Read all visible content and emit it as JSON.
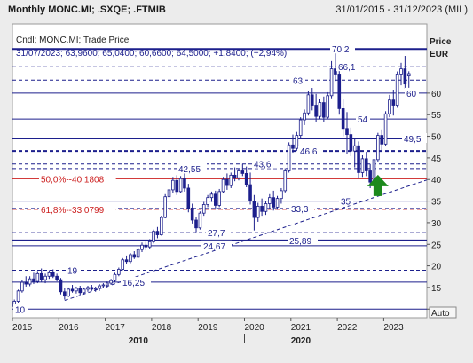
{
  "header": {
    "title": "Monthly MONC.MI; .SXQE; .FTMIB",
    "date_range": "31/01/2015 - 31/12/2023 (MIL)"
  },
  "legend": {
    "line1": "Cndl; MONC.MI; Trade Price",
    "line2": "31/07/2023; 63,9600; 65,0400; 60,6600; 64,5000; +1,8400; (+2,94%)"
  },
  "axis": {
    "price_label": "Price",
    "currency_label": "EUR",
    "auto_button": "Auto"
  },
  "colors": {
    "candle": "#1c1f8c",
    "resistance": "#1c1f8c",
    "fib": "#cc1e1e",
    "trend": "#1c1f8c",
    "arrow": "#1d8a1d"
  },
  "chart_data": {
    "type": "candlestick",
    "ylim": [
      8,
      76
    ],
    "y_ticks": [
      10,
      15,
      20,
      25,
      30,
      35,
      40,
      45,
      50,
      55,
      60
    ],
    "y_tick_labels": [
      "10",
      "15",
      "20",
      "25",
      "30",
      "35",
      "40",
      "45",
      "50",
      "55",
      "60"
    ],
    "x_year_labels": [
      "2015",
      "2016",
      "2017",
      "2018",
      "2019",
      "2020",
      "2021",
      "2022",
      "2023"
    ],
    "x_decade_labels": [
      "2010",
      "2020"
    ],
    "candles": [
      {
        "d": "2015-01",
        "o": 10.6,
        "h": 12.2,
        "l": 10.2,
        "c": 11.8
      },
      {
        "d": "2015-02",
        "o": 11.8,
        "h": 14.5,
        "l": 11.5,
        "c": 14.2
      },
      {
        "d": "2015-03",
        "o": 14.2,
        "h": 16.8,
        "l": 13.8,
        "c": 16.2
      },
      {
        "d": "2015-04",
        "o": 16.2,
        "h": 17.6,
        "l": 15.2,
        "c": 15.8
      },
      {
        "d": "2015-05",
        "o": 15.8,
        "h": 17.6,
        "l": 15.3,
        "c": 17.0
      },
      {
        "d": "2015-06",
        "o": 17.0,
        "h": 18.4,
        "l": 15.8,
        "c": 16.4
      },
      {
        "d": "2015-07",
        "o": 16.4,
        "h": 18.8,
        "l": 16.0,
        "c": 18.2
      },
      {
        "d": "2015-08",
        "o": 18.2,
        "h": 19.4,
        "l": 16.2,
        "c": 16.8
      },
      {
        "d": "2015-09",
        "o": 16.8,
        "h": 18.2,
        "l": 16.0,
        "c": 17.6
      },
      {
        "d": "2015-10",
        "o": 17.6,
        "h": 19.0,
        "l": 17.0,
        "c": 18.4
      },
      {
        "d": "2015-11",
        "o": 18.4,
        "h": 19.2,
        "l": 17.2,
        "c": 17.6
      },
      {
        "d": "2015-12",
        "o": 17.6,
        "h": 18.2,
        "l": 16.4,
        "c": 16.8
      },
      {
        "d": "2016-01",
        "o": 16.8,
        "h": 17.2,
        "l": 13.4,
        "c": 14.0
      },
      {
        "d": "2016-02",
        "o": 14.0,
        "h": 14.8,
        "l": 12.2,
        "c": 13.0
      },
      {
        "d": "2016-03",
        "o": 13.0,
        "h": 15.0,
        "l": 12.8,
        "c": 14.6
      },
      {
        "d": "2016-04",
        "o": 14.6,
        "h": 15.6,
        "l": 13.8,
        "c": 14.2
      },
      {
        "d": "2016-05",
        "o": 14.2,
        "h": 15.2,
        "l": 13.6,
        "c": 14.8
      },
      {
        "d": "2016-06",
        "o": 14.8,
        "h": 15.4,
        "l": 13.2,
        "c": 13.8
      },
      {
        "d": "2016-07",
        "o": 13.8,
        "h": 15.0,
        "l": 13.4,
        "c": 14.6
      },
      {
        "d": "2016-08",
        "o": 14.6,
        "h": 15.4,
        "l": 14.0,
        "c": 15.0
      },
      {
        "d": "2016-09",
        "o": 15.0,
        "h": 15.6,
        "l": 14.2,
        "c": 14.6
      },
      {
        "d": "2016-10",
        "o": 14.6,
        "h": 15.2,
        "l": 14.0,
        "c": 14.8
      },
      {
        "d": "2016-11",
        "o": 14.8,
        "h": 15.8,
        "l": 14.2,
        "c": 15.4
      },
      {
        "d": "2016-12",
        "o": 15.4,
        "h": 16.0,
        "l": 14.8,
        "c": 15.6
      },
      {
        "d": "2017-01",
        "o": 15.6,
        "h": 16.4,
        "l": 15.0,
        "c": 16.0
      },
      {
        "d": "2017-02",
        "o": 16.0,
        "h": 17.0,
        "l": 15.6,
        "c": 16.6
      },
      {
        "d": "2017-03",
        "o": 16.6,
        "h": 18.4,
        "l": 16.2,
        "c": 18.0
      },
      {
        "d": "2017-04",
        "o": 18.0,
        "h": 19.6,
        "l": 17.6,
        "c": 19.2
      },
      {
        "d": "2017-05",
        "o": 19.2,
        "h": 21.8,
        "l": 19.0,
        "c": 21.4
      },
      {
        "d": "2017-06",
        "o": 21.4,
        "h": 22.4,
        "l": 20.4,
        "c": 21.0
      },
      {
        "d": "2017-07",
        "o": 21.0,
        "h": 23.0,
        "l": 20.6,
        "c": 22.6
      },
      {
        "d": "2017-08",
        "o": 22.6,
        "h": 23.4,
        "l": 21.6,
        "c": 22.0
      },
      {
        "d": "2017-09",
        "o": 22.0,
        "h": 24.2,
        "l": 21.8,
        "c": 23.8
      },
      {
        "d": "2017-10",
        "o": 23.8,
        "h": 25.4,
        "l": 23.2,
        "c": 24.8
      },
      {
        "d": "2017-11",
        "o": 24.8,
        "h": 25.6,
        "l": 23.6,
        "c": 24.4
      },
      {
        "d": "2017-12",
        "o": 24.4,
        "h": 26.2,
        "l": 24.0,
        "c": 25.6
      },
      {
        "d": "2018-01",
        "o": 25.6,
        "h": 28.4,
        "l": 25.2,
        "c": 28.0
      },
      {
        "d": "2018-02",
        "o": 28.0,
        "h": 29.0,
        "l": 26.4,
        "c": 27.2
      },
      {
        "d": "2018-03",
        "o": 27.2,
        "h": 31.6,
        "l": 27.0,
        "c": 31.2
      },
      {
        "d": "2018-04",
        "o": 31.2,
        "h": 36.6,
        "l": 31.0,
        "c": 36.0
      },
      {
        "d": "2018-05",
        "o": 36.0,
        "h": 38.4,
        "l": 34.6,
        "c": 37.6
      },
      {
        "d": "2018-06",
        "o": 37.6,
        "h": 40.6,
        "l": 36.8,
        "c": 39.8
      },
      {
        "d": "2018-07",
        "o": 39.8,
        "h": 41.0,
        "l": 36.4,
        "c": 37.2
      },
      {
        "d": "2018-08",
        "o": 37.2,
        "h": 40.8,
        "l": 36.8,
        "c": 40.2
      },
      {
        "d": "2018-09",
        "o": 40.2,
        "h": 41.4,
        "l": 37.2,
        "c": 38.0
      },
      {
        "d": "2018-10",
        "o": 38.0,
        "h": 39.0,
        "l": 32.4,
        "c": 33.4
      },
      {
        "d": "2018-11",
        "o": 33.4,
        "h": 34.4,
        "l": 29.8,
        "c": 30.6
      },
      {
        "d": "2018-12",
        "o": 30.6,
        "h": 31.4,
        "l": 27.8,
        "c": 28.8
      },
      {
        "d": "2019-01",
        "o": 28.8,
        "h": 32.6,
        "l": 28.4,
        "c": 32.2
      },
      {
        "d": "2019-02",
        "o": 32.2,
        "h": 34.8,
        "l": 31.6,
        "c": 34.2
      },
      {
        "d": "2019-03",
        "o": 34.2,
        "h": 36.4,
        "l": 33.6,
        "c": 35.8
      },
      {
        "d": "2019-04",
        "o": 35.8,
        "h": 37.2,
        "l": 34.8,
        "c": 36.6
      },
      {
        "d": "2019-05",
        "o": 36.6,
        "h": 37.4,
        "l": 33.2,
        "c": 34.0
      },
      {
        "d": "2019-06",
        "o": 34.0,
        "h": 37.8,
        "l": 33.6,
        "c": 37.2
      },
      {
        "d": "2019-07",
        "o": 37.2,
        "h": 40.6,
        "l": 36.8,
        "c": 40.0
      },
      {
        "d": "2019-08",
        "o": 40.0,
        "h": 41.4,
        "l": 37.6,
        "c": 38.6
      },
      {
        "d": "2019-09",
        "o": 38.6,
        "h": 41.6,
        "l": 38.0,
        "c": 41.0
      },
      {
        "d": "2019-10",
        "o": 41.0,
        "h": 42.8,
        "l": 39.6,
        "c": 40.4
      },
      {
        "d": "2019-11",
        "o": 40.4,
        "h": 42.6,
        "l": 39.8,
        "c": 42.0
      },
      {
        "d": "2019-12",
        "o": 42.0,
        "h": 43.6,
        "l": 40.8,
        "c": 41.4
      },
      {
        "d": "2020-01",
        "o": 41.4,
        "h": 43.0,
        "l": 38.2,
        "c": 38.8
      },
      {
        "d": "2020-02",
        "o": 38.8,
        "h": 41.6,
        "l": 34.2,
        "c": 35.0
      },
      {
        "d": "2020-03",
        "o": 35.0,
        "h": 36.4,
        "l": 28.2,
        "c": 31.2
      },
      {
        "d": "2020-04",
        "o": 31.2,
        "h": 34.6,
        "l": 30.2,
        "c": 33.8
      },
      {
        "d": "2020-05",
        "o": 33.8,
        "h": 35.6,
        "l": 31.6,
        "c": 32.6
      },
      {
        "d": "2020-06",
        "o": 32.6,
        "h": 35.0,
        "l": 31.8,
        "c": 34.4
      },
      {
        "d": "2020-07",
        "o": 34.4,
        "h": 36.6,
        "l": 33.2,
        "c": 35.8
      },
      {
        "d": "2020-08",
        "o": 35.8,
        "h": 37.4,
        "l": 32.8,
        "c": 33.6
      },
      {
        "d": "2020-09",
        "o": 33.6,
        "h": 36.2,
        "l": 33.0,
        "c": 35.6
      },
      {
        "d": "2020-10",
        "o": 35.6,
        "h": 38.0,
        "l": 34.4,
        "c": 37.4
      },
      {
        "d": "2020-11",
        "o": 37.4,
        "h": 42.6,
        "l": 37.0,
        "c": 42.0
      },
      {
        "d": "2020-12",
        "o": 42.0,
        "h": 48.6,
        "l": 41.6,
        "c": 48.0
      },
      {
        "d": "2021-01",
        "o": 48.0,
        "h": 50.4,
        "l": 46.2,
        "c": 47.2
      },
      {
        "d": "2021-02",
        "o": 47.2,
        "h": 51.0,
        "l": 46.6,
        "c": 50.2
      },
      {
        "d": "2021-03",
        "o": 50.2,
        "h": 54.4,
        "l": 49.4,
        "c": 53.8
      },
      {
        "d": "2021-04",
        "o": 53.8,
        "h": 56.2,
        "l": 52.6,
        "c": 55.4
      },
      {
        "d": "2021-05",
        "o": 55.4,
        "h": 60.4,
        "l": 54.8,
        "c": 59.6
      },
      {
        "d": "2021-06",
        "o": 59.6,
        "h": 61.2,
        "l": 56.0,
        "c": 57.2
      },
      {
        "d": "2021-07",
        "o": 57.2,
        "h": 59.8,
        "l": 53.4,
        "c": 54.6
      },
      {
        "d": "2021-08",
        "o": 54.6,
        "h": 58.6,
        "l": 54.0,
        "c": 57.8
      },
      {
        "d": "2021-09",
        "o": 57.8,
        "h": 59.2,
        "l": 53.2,
        "c": 54.4
      },
      {
        "d": "2021-10",
        "o": 54.4,
        "h": 60.2,
        "l": 54.0,
        "c": 59.4
      },
      {
        "d": "2021-11",
        "o": 59.4,
        "h": 67.4,
        "l": 58.8,
        "c": 65.6
      },
      {
        "d": "2021-12",
        "o": 65.6,
        "h": 70.2,
        "l": 62.8,
        "c": 64.4
      },
      {
        "d": "2022-01",
        "o": 64.4,
        "h": 65.6,
        "l": 55.0,
        "c": 56.4
      },
      {
        "d": "2022-02",
        "o": 56.4,
        "h": 58.6,
        "l": 50.0,
        "c": 51.8
      },
      {
        "d": "2022-03",
        "o": 51.8,
        "h": 55.6,
        "l": 46.0,
        "c": 50.4
      },
      {
        "d": "2022-04",
        "o": 50.4,
        "h": 52.0,
        "l": 45.4,
        "c": 46.6
      },
      {
        "d": "2022-05",
        "o": 46.6,
        "h": 49.6,
        "l": 42.8,
        "c": 47.8
      },
      {
        "d": "2022-06",
        "o": 47.8,
        "h": 48.8,
        "l": 40.2,
        "c": 41.6
      },
      {
        "d": "2022-07",
        "o": 41.6,
        "h": 45.6,
        "l": 40.6,
        "c": 44.8
      },
      {
        "d": "2022-08",
        "o": 44.8,
        "h": 46.4,
        "l": 40.8,
        "c": 42.0
      },
      {
        "d": "2022-09",
        "o": 42.0,
        "h": 43.6,
        "l": 38.0,
        "c": 39.4
      },
      {
        "d": "2022-10",
        "o": 39.4,
        "h": 45.2,
        "l": 38.8,
        "c": 44.6
      },
      {
        "d": "2022-11",
        "o": 44.6,
        "h": 50.8,
        "l": 44.0,
        "c": 50.2
      },
      {
        "d": "2022-12",
        "o": 50.2,
        "h": 51.6,
        "l": 46.8,
        "c": 48.2
      },
      {
        "d": "2023-01",
        "o": 48.2,
        "h": 55.8,
        "l": 47.8,
        "c": 55.2
      },
      {
        "d": "2023-02",
        "o": 55.2,
        "h": 59.6,
        "l": 54.4,
        "c": 58.4
      },
      {
        "d": "2023-03",
        "o": 58.4,
        "h": 60.8,
        "l": 54.8,
        "c": 57.2
      },
      {
        "d": "2023-04",
        "o": 57.2,
        "h": 65.0,
        "l": 56.6,
        "c": 64.4
      },
      {
        "d": "2023-05",
        "o": 64.4,
        "h": 67.0,
        "l": 61.8,
        "c": 65.6
      },
      {
        "d": "2023-06",
        "o": 65.6,
        "h": 68.6,
        "l": 61.0,
        "c": 62.1
      },
      {
        "d": "2023-07",
        "o": 63.96,
        "h": 65.04,
        "l": 60.66,
        "c": 64.5
      }
    ],
    "horizontal_lines": [
      {
        "value": 70.2,
        "label": "70,2",
        "style": "solid-thick"
      },
      {
        "value": 66.1,
        "label": "66,1",
        "style": "dashed"
      },
      {
        "value": 63,
        "label": "63",
        "style": "dashed"
      },
      {
        "value": 60,
        "label": "60",
        "style": "solid"
      },
      {
        "value": 54,
        "label": "54",
        "style": "solid"
      },
      {
        "value": 49.5,
        "label": "49,5",
        "style": "solid-thick"
      },
      {
        "value": 46.6,
        "label": "46,6",
        "style": "dashed-thick"
      },
      {
        "value": 43.6,
        "label": "43,6",
        "style": "dashed"
      },
      {
        "value": 42.55,
        "label": "42,55",
        "style": "dashed"
      },
      {
        "value": 35,
        "label": "35",
        "style": "solid"
      },
      {
        "value": 33.3,
        "label": "33,3",
        "style": "dashed"
      },
      {
        "value": 27.7,
        "label": "27,7",
        "style": "dashed"
      },
      {
        "value": 25.89,
        "label": "25,89",
        "style": "solid-thick"
      },
      {
        "value": 24.67,
        "label": "24,67",
        "style": "solid"
      },
      {
        "value": 19,
        "label": "19",
        "style": "dashed"
      },
      {
        "value": 16.25,
        "label": "16,25",
        "style": "solid"
      },
      {
        "value": 10,
        "label": "10",
        "style": "solid"
      }
    ],
    "fibonacci": [
      {
        "value": 40.1808,
        "label": "50,0%--40,1808"
      },
      {
        "value": 33.0799,
        "label": "61,8%--33,0799"
      }
    ],
    "trendline": {
      "from": {
        "d": "2016-02",
        "v": 12.0
      },
      "to": {
        "d": "2023-12",
        "v": 40.0
      }
    },
    "arrow": {
      "d": "2022-11",
      "v": 37.0
    }
  }
}
